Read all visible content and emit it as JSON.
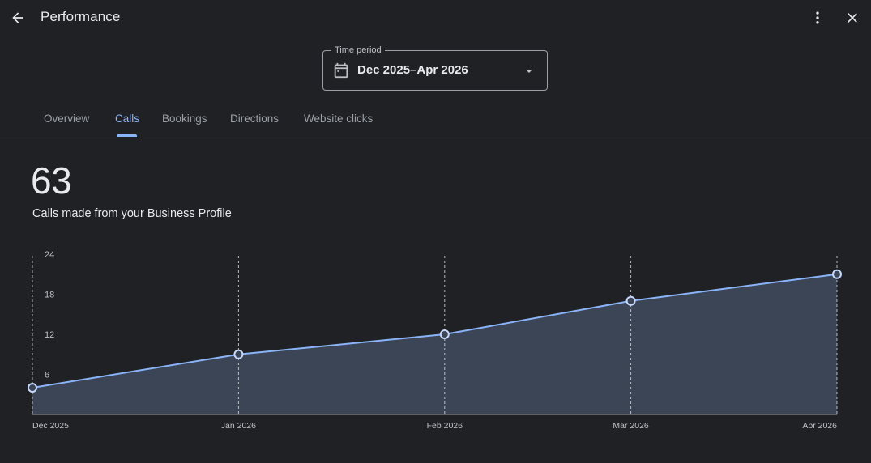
{
  "header": {
    "title": "Performance",
    "back_icon": "arrow-back-icon",
    "more_icon": "more-vert-icon",
    "close_icon": "close-icon"
  },
  "time_period": {
    "legend": "Time period",
    "value": "Dec 2025–Apr 2026",
    "calendar_icon": "calendar-icon",
    "dropdown_icon": "arrow-drop-down-icon"
  },
  "tabs": [
    {
      "label": "Overview",
      "active": false
    },
    {
      "label": "Calls",
      "active": true
    },
    {
      "label": "Bookings",
      "active": false
    },
    {
      "label": "Directions",
      "active": false
    },
    {
      "label": "Website clicks",
      "active": false
    }
  ],
  "metric": {
    "value": "63",
    "label": "Calls made from your Business Profile"
  },
  "colors": {
    "accent": "#8ab4f8",
    "area_fill": "#3c4556",
    "background": "#202124"
  },
  "chart_data": {
    "type": "area",
    "x": [
      "Dec 2025",
      "Jan 2026",
      "Feb 2026",
      "Mar 2026",
      "Apr 2026"
    ],
    "x_position_days": [
      0,
      31,
      62,
      90,
      121
    ],
    "values": [
      4,
      9,
      12,
      17,
      21
    ],
    "yticks": [
      "24",
      "18",
      "12",
      "6"
    ],
    "ylim": [
      0,
      24
    ],
    "grid": "vertical-dashed"
  }
}
